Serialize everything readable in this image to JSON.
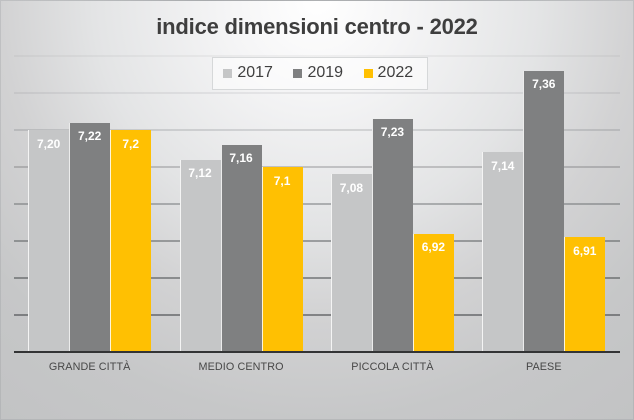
{
  "chart_data": {
    "type": "bar",
    "title": "indice dimensioni centro - 2022",
    "categories": [
      "GRANDE CITTÀ",
      "MEDIO CENTRO",
      "PICCOLA CITTÀ",
      "PAESE"
    ],
    "series": [
      {
        "name": "2017",
        "color": "#c5c6c7",
        "values": [
          7.2,
          7.12,
          7.08,
          7.14
        ],
        "labels": [
          "7,20",
          "7,12",
          "7,08",
          "7,14"
        ]
      },
      {
        "name": "2019",
        "color": "#7f8081",
        "values": [
          7.22,
          7.16,
          7.23,
          7.36
        ],
        "labels": [
          "7,22",
          "7,16",
          "7,23",
          "7,36"
        ]
      },
      {
        "name": "2022",
        "color": "#ffc002",
        "values": [
          7.2,
          7.1,
          6.92,
          6.91
        ],
        "labels": [
          "7,2",
          "7,1",
          "6,92",
          "6,91"
        ]
      }
    ],
    "ylim": [
      6.6,
      7.4
    ],
    "grid_step": 0.1,
    "y_axis_labels_visible": false,
    "grid": true,
    "legend_position": "top-center",
    "value_label_color": "#ffffff",
    "title_color": "#3e3e3e",
    "axis_line_color": "#333435"
  }
}
